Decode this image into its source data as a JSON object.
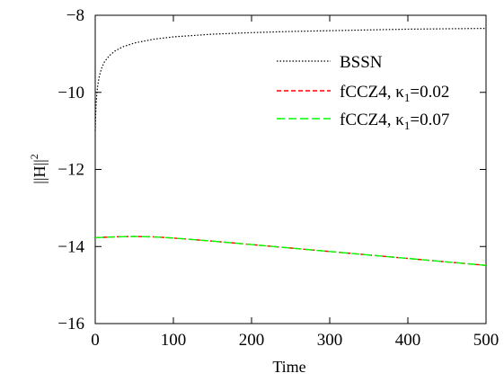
{
  "chart_data": {
    "type": "line",
    "title": "",
    "xlabel": "Time",
    "ylabel": "||H||",
    "ylabel_superscript": "2",
    "xlim": [
      0,
      500
    ],
    "ylim": [
      -16,
      -8
    ],
    "xticks": [
      0,
      100,
      200,
      300,
      400,
      500
    ],
    "yticks": [
      -16,
      -14,
      -12,
      -10,
      -8
    ],
    "xtick_labels": [
      "0",
      "100",
      "200",
      "300",
      "400",
      "500"
    ],
    "ytick_labels": [
      "−16",
      "−14",
      "−12",
      "−10",
      "−8"
    ],
    "grid": false,
    "legend_position": "top-right",
    "series": [
      {
        "name": "BSSN",
        "name_parts": {
          "main": "BSSN",
          "sub": "",
          "suffix": ""
        },
        "color": "#000000",
        "style": "dotted",
        "x": [
          0,
          0.5,
          1,
          2,
          3,
          5,
          8,
          12,
          18,
          25,
          35,
          50,
          75,
          100,
          150,
          200,
          250,
          300,
          350,
          400,
          450,
          500
        ],
        "y": [
          -11.0,
          -10.6,
          -10.35,
          -10.05,
          -9.85,
          -9.6,
          -9.38,
          -9.2,
          -9.05,
          -8.93,
          -8.82,
          -8.72,
          -8.62,
          -8.56,
          -8.49,
          -8.45,
          -8.42,
          -8.4,
          -8.38,
          -8.36,
          -8.35,
          -8.34
        ]
      },
      {
        "name": "fCCZ4, κ1=0.02",
        "name_parts": {
          "main": "fCCZ4, κ",
          "sub": "1",
          "suffix": "=0.02"
        },
        "color": "#ff0000",
        "style": "dashed-short",
        "x": [
          0,
          25,
          50,
          75,
          100,
          150,
          200,
          250,
          300,
          350,
          400,
          450,
          500
        ],
        "y": [
          -13.77,
          -13.75,
          -13.74,
          -13.75,
          -13.78,
          -13.86,
          -13.95,
          -14.04,
          -14.13,
          -14.22,
          -14.31,
          -14.4,
          -14.49
        ]
      },
      {
        "name": "fCCZ4, κ1=0.07",
        "name_parts": {
          "main": "fCCZ4, κ",
          "sub": "1",
          "suffix": "=0.07"
        },
        "color": "#00ff00",
        "style": "dashed-long",
        "x": [
          0,
          25,
          50,
          75,
          100,
          150,
          200,
          250,
          300,
          350,
          400,
          450,
          500
        ],
        "y": [
          -13.77,
          -13.75,
          -13.74,
          -13.75,
          -13.78,
          -13.86,
          -13.95,
          -14.04,
          -14.13,
          -14.22,
          -14.31,
          -14.4,
          -14.49
        ]
      }
    ]
  }
}
